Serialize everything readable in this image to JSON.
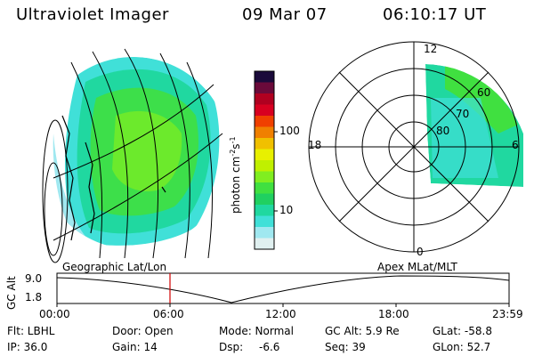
{
  "header": {
    "title": "Ultraviolet Imager",
    "date": "09 Mar 07",
    "time": "06:10:17 UT"
  },
  "colorbar": {
    "unit": "photon cm",
    "unit_exp1": "-2",
    "unit_mid": "s",
    "unit_exp2": "-1",
    "ticks": [
      "100",
      "10"
    ],
    "colors": [
      "#1a0a3a",
      "#6a0a3a",
      "#b00020",
      "#d80020",
      "#f04000",
      "#f08000",
      "#f0c000",
      "#e8f000",
      "#c0f000",
      "#80ee20",
      "#40e040",
      "#20d060",
      "#20d8a0",
      "#40e0d8",
      "#a0e8f0",
      "#e0f0f0"
    ]
  },
  "polar": {
    "top": "12",
    "left": "18",
    "right": "6",
    "bottom": "0",
    "rings": [
      "60",
      "70",
      "80"
    ]
  },
  "timeline": {
    "left_title": "Geographic Lat/Lon",
    "right_title": "Apex MLat/MLT",
    "axis_label": "GC Alt",
    "y_top": "9.0",
    "y_bottom": "1.8",
    "ticks": [
      "00:00",
      "06:00",
      "12:00",
      "18:00",
      "23:59"
    ],
    "marker_color": "#d00000"
  },
  "info": {
    "flt": "Flt: LBHL",
    "ip": "IP: 36.0",
    "door": "Door: Open",
    "gain": "Gain: 14",
    "mode": "Mode: Normal",
    "dsp_label": "Dsp:",
    "dsp_value": "-6.6",
    "gc_alt": "GC Alt: 5.9 Re",
    "seq": "Seq: 39",
    "glat": "GLat: -58.8",
    "glon": "GLon: 52.7"
  }
}
